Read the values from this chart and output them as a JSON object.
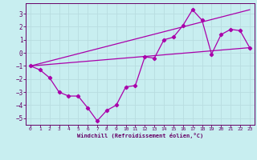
{
  "bg_color": "#c8eef0",
  "line_color": "#aa00aa",
  "grid_color": "#b8dde0",
  "xlabel": "Windchill (Refroidissement éolien,°C)",
  "xlim": [
    -0.5,
    23.5
  ],
  "ylim": [
    -5.5,
    3.8
  ],
  "xticks": [
    0,
    1,
    2,
    3,
    4,
    5,
    6,
    7,
    8,
    9,
    10,
    11,
    12,
    13,
    14,
    15,
    16,
    17,
    18,
    19,
    20,
    21,
    22,
    23
  ],
  "yticks": [
    -5,
    -4,
    -3,
    -2,
    -1,
    0,
    1,
    2,
    3
  ],
  "data_x": [
    0,
    1,
    2,
    3,
    4,
    5,
    6,
    7,
    8,
    9,
    10,
    11,
    12,
    13,
    14,
    15,
    16,
    17,
    18,
    19,
    20,
    21,
    22,
    23
  ],
  "data_y": [
    -1,
    -1.3,
    -1.9,
    -3.0,
    -3.3,
    -3.3,
    -4.2,
    -5.2,
    -4.4,
    -4.0,
    -2.6,
    -2.5,
    -0.3,
    -0.4,
    1.0,
    1.2,
    2.1,
    3.3,
    2.5,
    -0.1,
    1.4,
    1.8,
    1.7,
    0.4
  ],
  "line1_x": [
    0,
    23
  ],
  "line1_y": [
    -1.0,
    0.4
  ],
  "line2_x": [
    0,
    23
  ],
  "line2_y": [
    -1.0,
    3.3
  ]
}
